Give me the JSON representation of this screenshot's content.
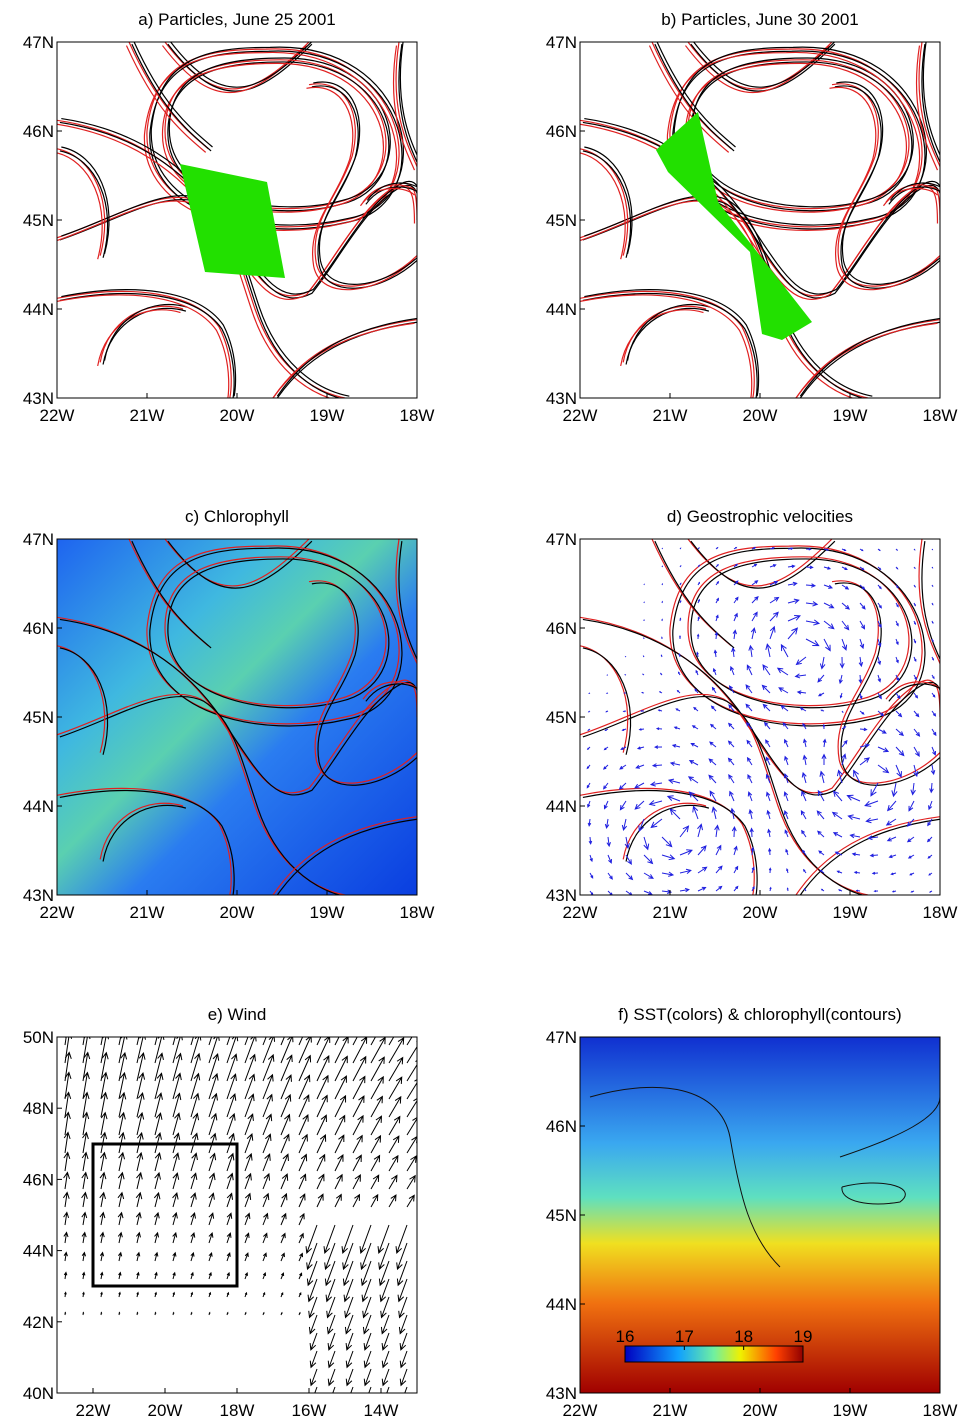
{
  "panels": [
    {
      "title": "a) Particles, June 25 2001",
      "xlim": [
        -22,
        -18
      ],
      "ylim": [
        43,
        47
      ],
      "xticks": [
        {
          "value": -22,
          "label": "22W"
        },
        {
          "value": -21,
          "label": "21W"
        },
        {
          "value": -20,
          "label": "20W"
        },
        {
          "value": -19,
          "label": "19W"
        },
        {
          "value": -18,
          "label": "18W"
        }
      ],
      "yticks": [
        {
          "value": 43,
          "label": "43N"
        },
        {
          "value": 44,
          "label": "44N"
        },
        {
          "value": 45,
          "label": "45N"
        },
        {
          "value": 46,
          "label": "46N"
        },
        {
          "value": 47,
          "label": "47N"
        }
      ]
    },
    {
      "title": "b) Particles, June 30 2001",
      "xlim": [
        -22,
        -18
      ],
      "ylim": [
        43,
        47
      ],
      "xticks": [
        {
          "value": -22,
          "label": "22W"
        },
        {
          "value": -21,
          "label": "21W"
        },
        {
          "value": -20,
          "label": "20W"
        },
        {
          "value": -19,
          "label": "19W"
        },
        {
          "value": -18,
          "label": "18W"
        }
      ],
      "yticks": [
        {
          "value": 43,
          "label": "43N"
        },
        {
          "value": 44,
          "label": "44N"
        },
        {
          "value": 45,
          "label": "45N"
        },
        {
          "value": 46,
          "label": "46N"
        },
        {
          "value": 47,
          "label": "47N"
        }
      ]
    },
    {
      "title": "c) Chlorophyll",
      "xlim": [
        -22,
        -18
      ],
      "ylim": [
        43,
        47
      ],
      "xticks": [
        {
          "value": -22,
          "label": "22W"
        },
        {
          "value": -21,
          "label": "21W"
        },
        {
          "value": -20,
          "label": "20W"
        },
        {
          "value": -19,
          "label": "19W"
        },
        {
          "value": -18,
          "label": "18W"
        }
      ],
      "yticks": [
        {
          "value": 43,
          "label": "43N"
        },
        {
          "value": 44,
          "label": "44N"
        },
        {
          "value": 45,
          "label": "45N"
        },
        {
          "value": 46,
          "label": "46N"
        },
        {
          "value": 47,
          "label": "47N"
        }
      ]
    },
    {
      "title": "d) Geostrophic velocities",
      "xlim": [
        -22,
        -18
      ],
      "ylim": [
        43,
        47
      ],
      "xticks": [
        {
          "value": -22,
          "label": "22W"
        },
        {
          "value": -21,
          "label": "21W"
        },
        {
          "value": -20,
          "label": "20W"
        },
        {
          "value": -19,
          "label": "19W"
        },
        {
          "value": -18,
          "label": "18W"
        }
      ],
      "yticks": [
        {
          "value": 43,
          "label": "43N"
        },
        {
          "value": 44,
          "label": "44N"
        },
        {
          "value": 45,
          "label": "45N"
        },
        {
          "value": 46,
          "label": "46N"
        },
        {
          "value": 47,
          "label": "47N"
        }
      ]
    },
    {
      "title": "e) Wind",
      "xlim": [
        -23,
        -13
      ],
      "ylim": [
        40,
        50
      ],
      "xticks": [
        {
          "value": -22,
          "label": "22W"
        },
        {
          "value": -20,
          "label": "20W"
        },
        {
          "value": -18,
          "label": "18W"
        },
        {
          "value": -16,
          "label": "16W"
        },
        {
          "value": -14,
          "label": "14W"
        }
      ],
      "yticks": [
        {
          "value": 40,
          "label": "40N"
        },
        {
          "value": 42,
          "label": "42N"
        },
        {
          "value": 44,
          "label": "44N"
        },
        {
          "value": 46,
          "label": "46N"
        },
        {
          "value": 48,
          "label": "48N"
        },
        {
          "value": 50,
          "label": "50N"
        }
      ]
    },
    {
      "title": "f) SST(colors) & chlorophyll(contours)",
      "xlim": [
        -22,
        -18
      ],
      "ylim": [
        43,
        47
      ],
      "xticks": [
        {
          "value": -22,
          "label": "22W"
        },
        {
          "value": -21,
          "label": "21W"
        },
        {
          "value": -20,
          "label": "20W"
        },
        {
          "value": -19,
          "label": "19W"
        },
        {
          "value": -18,
          "label": "18W"
        }
      ],
      "yticks": [
        {
          "value": 43,
          "label": "43N"
        },
        {
          "value": 44,
          "label": "44N"
        },
        {
          "value": 45,
          "label": "45N"
        },
        {
          "value": 46,
          "label": "46N"
        },
        {
          "value": 47,
          "label": "47N"
        }
      ],
      "colorbar": {
        "lim": [
          16,
          19
        ],
        "ticks": [
          16,
          17,
          18,
          19
        ]
      }
    }
  ]
}
